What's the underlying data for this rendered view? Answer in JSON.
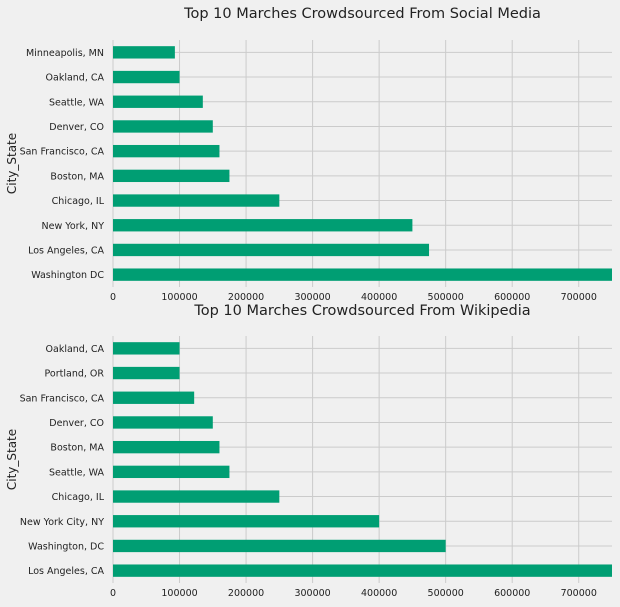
{
  "chart_data": [
    {
      "type": "bar",
      "orientation": "horizontal",
      "title": "Top 10 Marches Crowdsourced From Social Media",
      "xlabel": "",
      "ylabel": "City_State",
      "xlim": [
        0,
        750000
      ],
      "xticks": [
        "0",
        "100000",
        "200000",
        "300000",
        "400000",
        "500000",
        "600000",
        "700000"
      ],
      "grid": true,
      "color": "#009e73",
      "categories": [
        "Minneapolis, MN",
        "Oakland, CA",
        "Seattle, WA",
        "Denver, CO",
        "San Francisco, CA",
        "Boston, MA",
        "Chicago, IL",
        "New York, NY",
        "Los Angeles, CA",
        "Washington DC"
      ],
      "values": [
        93000,
        100000,
        135000,
        150000,
        160000,
        175000,
        250000,
        450000,
        475000,
        750000
      ]
    },
    {
      "type": "bar",
      "orientation": "horizontal",
      "title": "Top 10 Marches Crowdsourced From Wikipedia",
      "xlabel": "",
      "ylabel": "City_State",
      "xlim": [
        0,
        750000
      ],
      "xticks": [
        "0",
        "100000",
        "200000",
        "300000",
        "400000",
        "500000",
        "600000",
        "700000"
      ],
      "grid": true,
      "color": "#009e73",
      "categories": [
        "Oakland, CA",
        "Portland, OR",
        "San Francisco, CA",
        "Denver, CO",
        "Boston, MA",
        "Seattle, WA",
        "Chicago, IL",
        "New York City, NY",
        "Washington, DC",
        "Los Angeles, CA"
      ],
      "values": [
        100000,
        100000,
        122000,
        150000,
        160000,
        175000,
        250000,
        400000,
        500000,
        750000
      ]
    }
  ]
}
